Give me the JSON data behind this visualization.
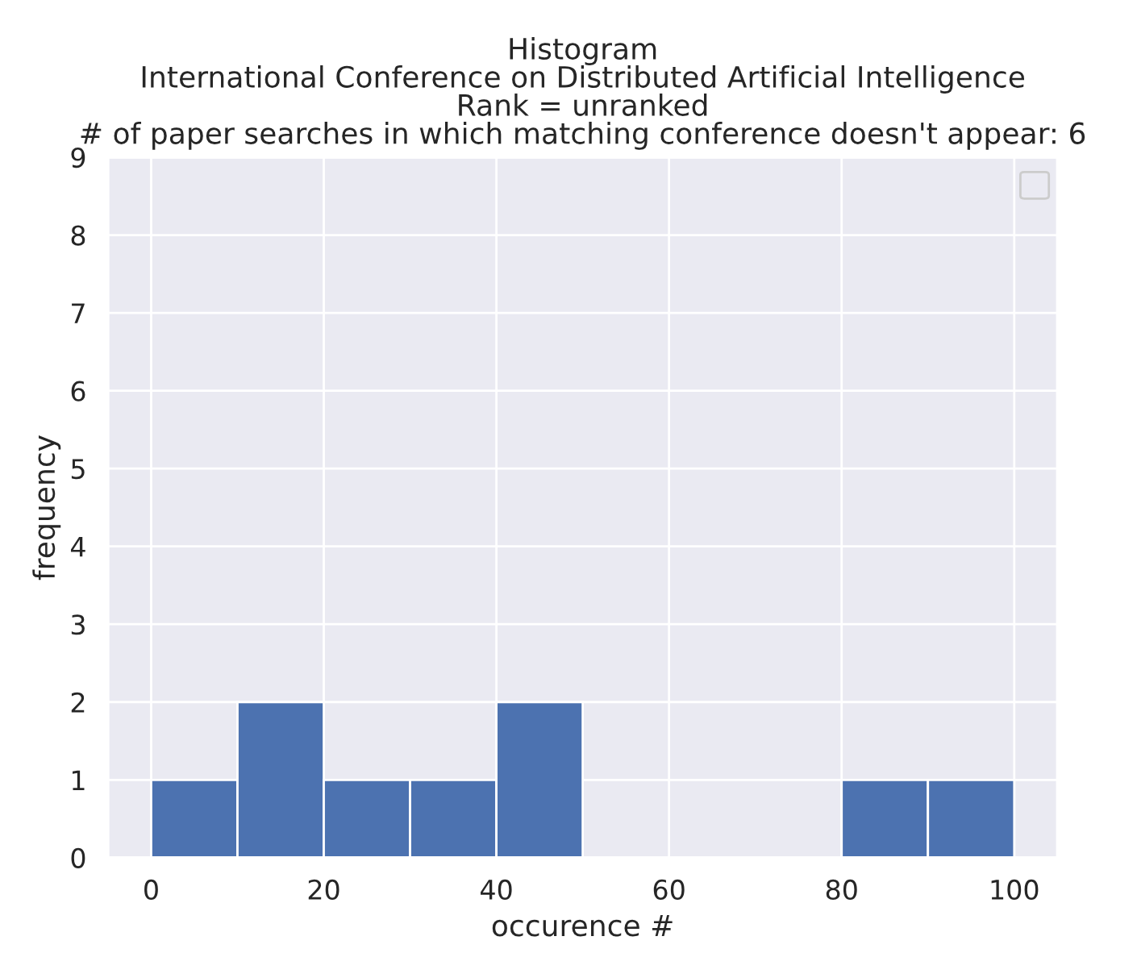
{
  "chart_data": {
    "type": "histogram",
    "title": "Histogram\nInternational Conference on Distributed Artificial Intelligence\nRank = unranked\n# of paper searches in which matching conference doesn't appear: 6",
    "xlabel": "occurence #",
    "ylabel": "frequency",
    "bins": [
      0,
      10,
      20,
      30,
      40,
      50,
      60,
      70,
      80,
      90,
      100
    ],
    "values": [
      1,
      2,
      1,
      1,
      2,
      0,
      0,
      0,
      1,
      1
    ],
    "color": "#4c72b0",
    "xlim": [
      -5,
      105
    ],
    "ylim": [
      0,
      9
    ],
    "xticks": [
      0,
      20,
      40,
      60,
      80,
      100
    ],
    "yticks": [
      0,
      1,
      2,
      3,
      4,
      5,
      6,
      7,
      8,
      9
    ],
    "grid": true
  }
}
